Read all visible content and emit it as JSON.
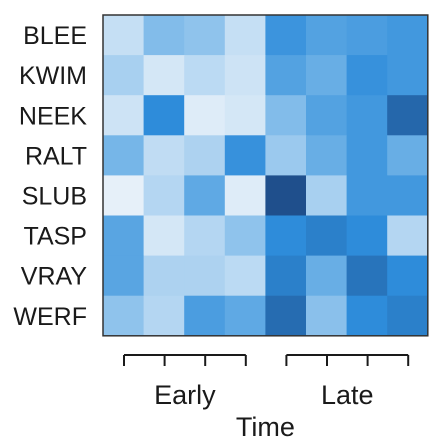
{
  "chart_data": {
    "type": "heatmap",
    "rows": [
      "BLEE",
      "KWIM",
      "NEEK",
      "RALT",
      "SLUB",
      "TASP",
      "VRAY",
      "WERF"
    ],
    "groups": [
      {
        "label": "Early",
        "columns": 4
      },
      {
        "label": "Late",
        "columns": 4
      }
    ],
    "xlabel": "Time",
    "ylabel": "",
    "title": "",
    "colors": {
      "low": "#f2f6fb",
      "high": "#1f4f8c",
      "frame": "#333333"
    },
    "values": [
      [
        0.18,
        0.45,
        0.4,
        0.18,
        0.7,
        0.62,
        0.65,
        0.68
      ],
      [
        0.3,
        0.12,
        0.22,
        0.15,
        0.62,
        0.55,
        0.72,
        0.68
      ],
      [
        0.15,
        0.75,
        0.08,
        0.12,
        0.45,
        0.62,
        0.68,
        0.9
      ],
      [
        0.5,
        0.2,
        0.28,
        0.72,
        0.35,
        0.55,
        0.68,
        0.55
      ],
      [
        0.05,
        0.25,
        0.58,
        0.08,
        1.0,
        0.3,
        0.68,
        0.68
      ],
      [
        0.6,
        0.12,
        0.25,
        0.4,
        0.75,
        0.8,
        0.75,
        0.25
      ],
      [
        0.6,
        0.28,
        0.28,
        0.22,
        0.8,
        0.55,
        0.85,
        0.75
      ],
      [
        0.4,
        0.25,
        0.65,
        0.58,
        0.88,
        0.42,
        0.75,
        0.8
      ]
    ]
  }
}
